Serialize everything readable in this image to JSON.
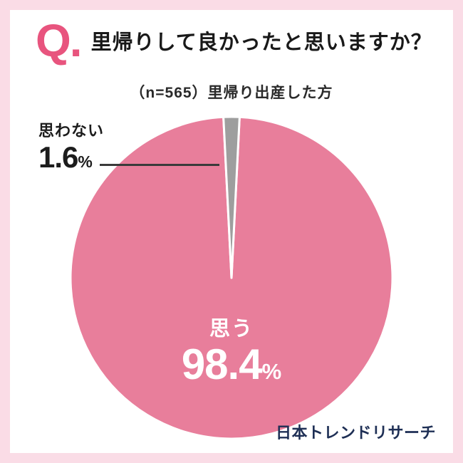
{
  "header": {
    "q_label": "Q.",
    "question": "里帰りして良かったと思いますか？"
  },
  "subtitle": "（n=565）里帰り出産した方",
  "chart_data": {
    "type": "pie",
    "title": "里帰りして良かったと思いますか？",
    "note": "（n=565）里帰り出産した方",
    "n": 565,
    "legend_position": "none",
    "slices": [
      {
        "label": "思う",
        "value": 98.4,
        "color": "#e87e9b"
      },
      {
        "label": "思わない",
        "value": 1.6,
        "color": "#9e9e9e"
      }
    ]
  },
  "annotations": {
    "minor_label": "思わない",
    "minor_value": "1.6",
    "major_label": "思う",
    "major_value": "98.4",
    "percent_sign": "%"
  },
  "footer": {
    "brand": "日本トレンドリサーチ"
  },
  "colors": {
    "frame_pink": "#fadce6",
    "accent_pink": "#e8547e",
    "pie_pink": "#e87e9b",
    "pie_gray": "#9e9e9e",
    "brand_navy": "#1e2f55"
  }
}
